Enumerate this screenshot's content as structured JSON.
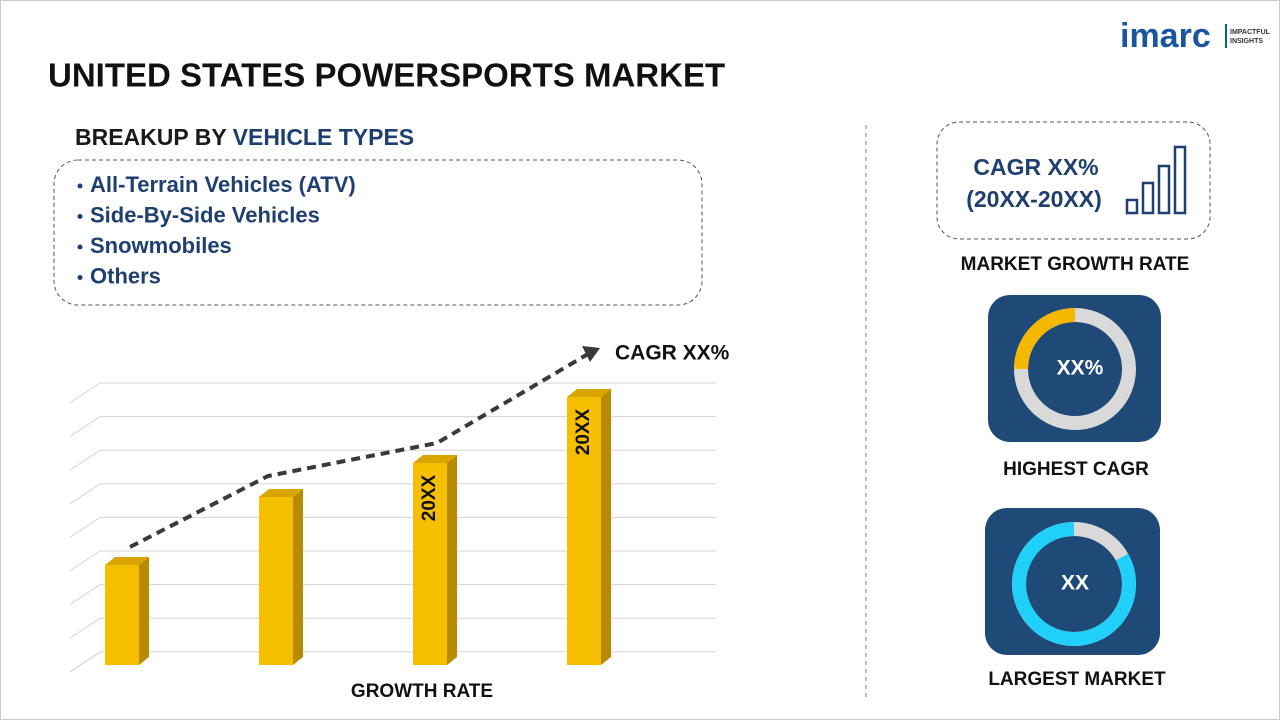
{
  "logo": {
    "brand": "imarc",
    "tagline": [
      "IMPACTFUL",
      "INSIGHTS"
    ]
  },
  "title": "UNITED STATES POWERSPORTS MARKET",
  "breakup": {
    "label": "BREAKUP BY",
    "highlight": "VEHICLE TYPES",
    "items": [
      "All-Terrain Vehicles (ATV)",
      "Side-By-Side Vehicles",
      "Snowmobiles",
      "Others"
    ]
  },
  "growth_chart": {
    "cagr": "CAGR XX%",
    "bar_labels": [
      "20XX",
      "20XX"
    ],
    "axis_label": "GROWTH RATE"
  },
  "sidebar": {
    "cagr_box": {
      "line1": "CAGR XX%",
      "line2": "(20XX-20XX)",
      "caption": "MARKET GROWTH RATE"
    },
    "highest": {
      "value": "XX%",
      "caption": "HIGHEST CAGR"
    },
    "largest": {
      "value": "XX",
      "caption": "LARGEST MARKET"
    }
  }
}
